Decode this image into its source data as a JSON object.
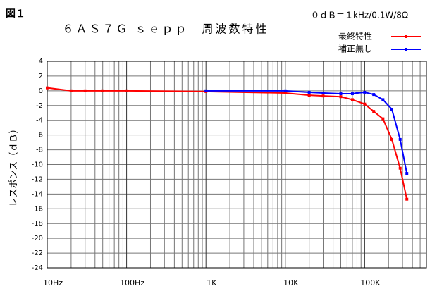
{
  "chart_data": {
    "type": "line",
    "figure_label": "図１",
    "title": "６ＡＳ７Ｇ ｓｅｐｐ　周波数特性",
    "annotation": "０ｄＢ＝１kHz/0.1W/8Ω",
    "ylabel": "レスポンス（ｄＢ）",
    "xlog": true,
    "grid": true,
    "legend": "top-right",
    "xlim": [
      10,
      600000
    ],
    "ylim": [
      -24,
      4
    ],
    "xticks": [
      {
        "value": 10,
        "label": "10Hz"
      },
      {
        "value": 100,
        "label": "100Hz"
      },
      {
        "value": 1000,
        "label": "1K"
      },
      {
        "value": 10000,
        "label": "10K"
      },
      {
        "value": 100000,
        "label": "100K"
      }
    ],
    "yticks": [
      4,
      2,
      0,
      -2,
      -4,
      -6,
      -8,
      -10,
      -12,
      -14,
      -16,
      -18,
      -20,
      -22,
      -24
    ],
    "series": [
      {
        "name": "最終特性",
        "color": "#ff0000",
        "x": [
          10,
          20,
          30,
          50,
          100,
          1000,
          10000,
          20000,
          30000,
          50000,
          70000,
          100000,
          130000,
          170000,
          220000,
          280000,
          340000
        ],
        "values": [
          0.4,
          0,
          0,
          0,
          0,
          -0.1,
          -0.3,
          -0.6,
          -0.7,
          -0.8,
          -1.2,
          -1.8,
          -2.8,
          -3.8,
          -6.6,
          -10.5,
          -14.7
        ]
      },
      {
        "name": "補正無し",
        "color": "#0000ff",
        "x": [
          1000,
          10000,
          20000,
          30000,
          50000,
          70000,
          80000,
          100000,
          130000,
          170000,
          220000,
          280000,
          340000
        ],
        "values": [
          0,
          0,
          -0.2,
          -0.3,
          -0.4,
          -0.4,
          -0.3,
          -0.2,
          -0.5,
          -1.2,
          -2.5,
          -6.6,
          -11.2
        ]
      }
    ]
  }
}
